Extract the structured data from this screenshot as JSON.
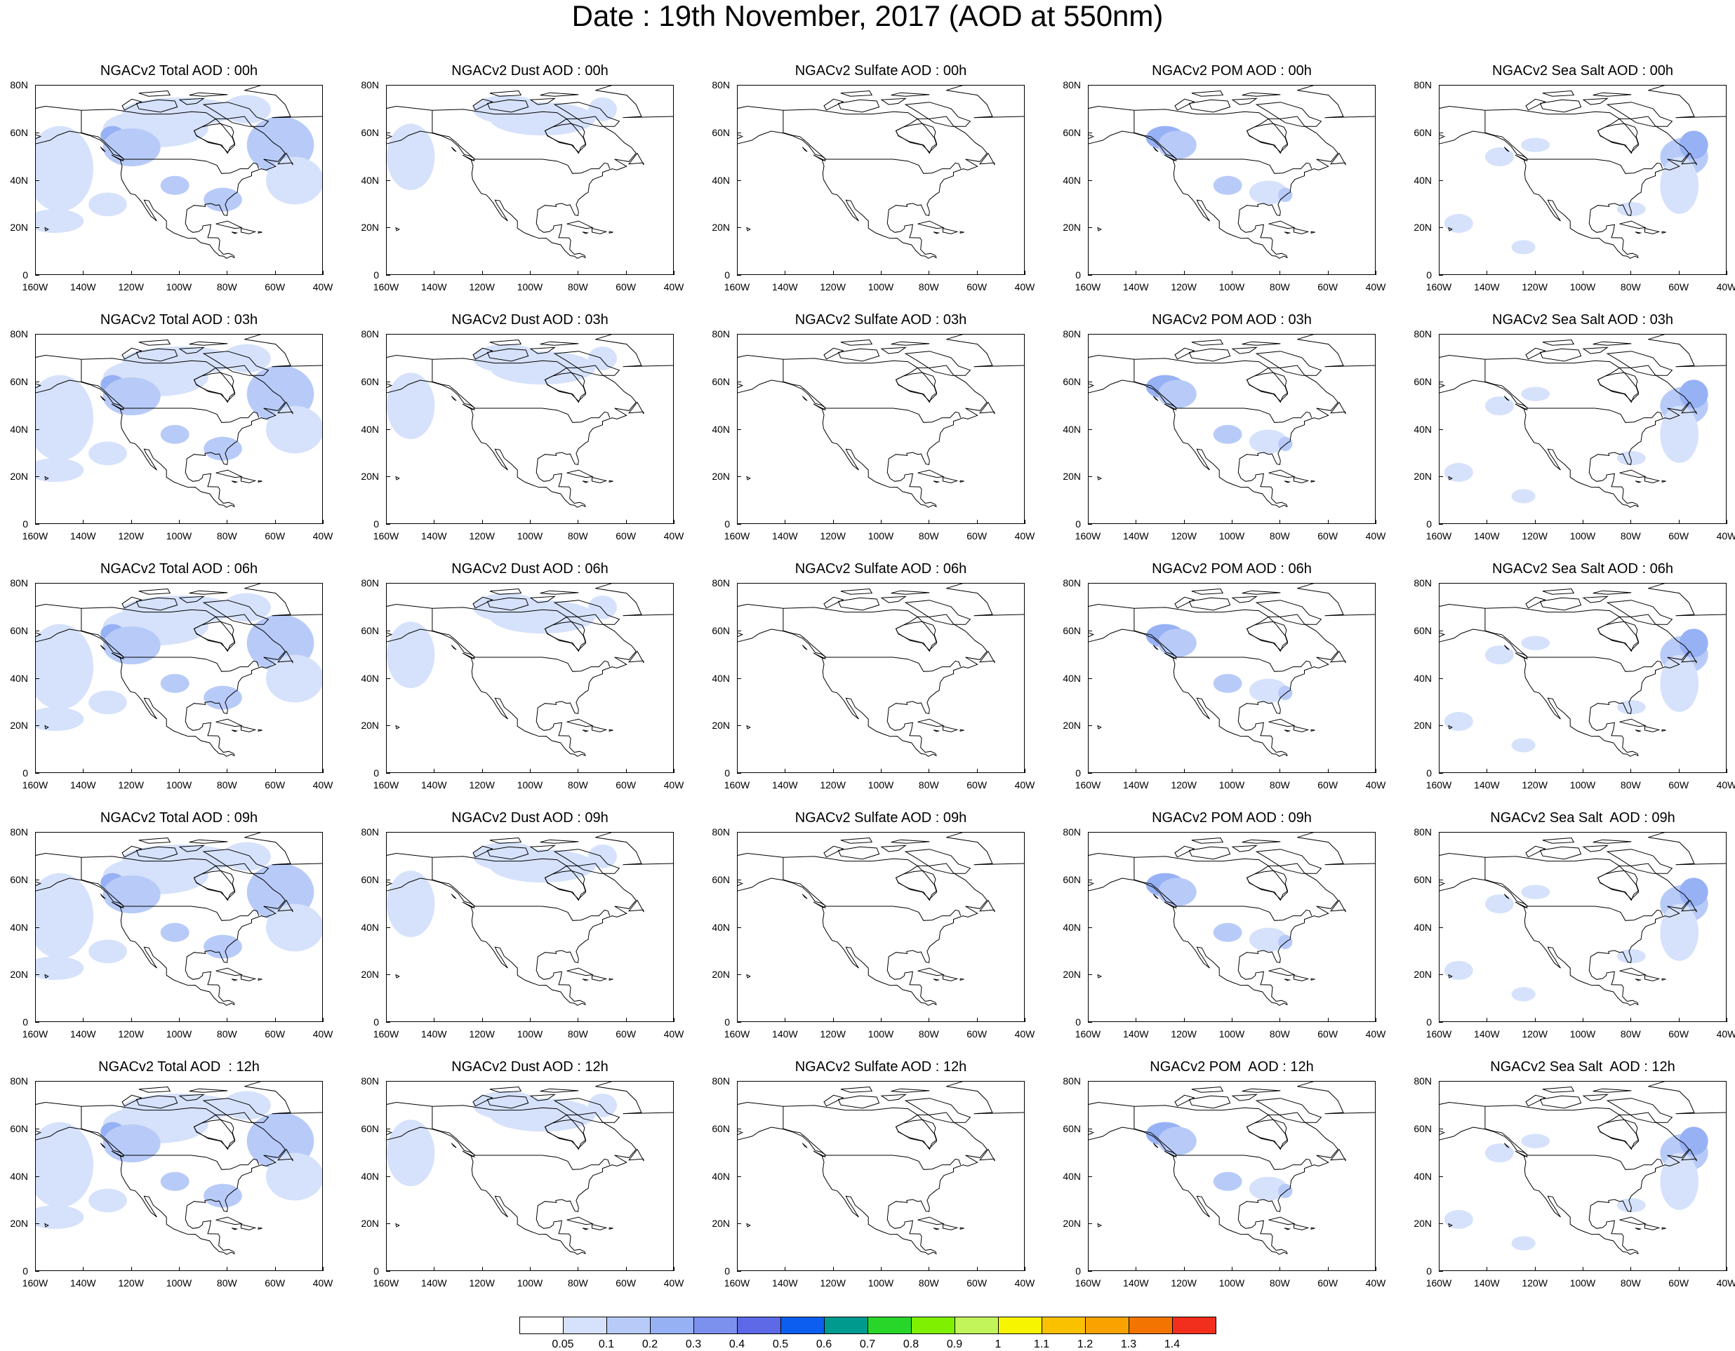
{
  "title": "Date : 19th November, 2017 (AOD at 550nm)",
  "panels": [
    [
      "NGACv2 Total AOD : 00h",
      "NGACv2 Dust AOD : 00h",
      "NGACv2 Sulfate AOD : 00h",
      "NGACv2 POM AOD : 00h",
      "NGACv2 Sea Salt AOD : 00h"
    ],
    [
      "NGACv2 Total AOD : 03h",
      "NGACv2 Dust AOD : 03h",
      "NGACv2 Sulfate AOD : 03h",
      "NGACv2 POM AOD : 03h",
      "NGACv2 Sea Salt AOD : 03h"
    ],
    [
      "NGACv2 Total AOD : 06h",
      "NGACv2 Dust AOD : 06h",
      "NGACv2 Sulfate AOD : 06h",
      "NGACv2 POM AOD : 06h",
      "NGACv2 Sea Salt AOD : 06h"
    ],
    [
      "NGACv2 Total AOD : 09h",
      "NGACv2 Dust AOD : 09h",
      "NGACv2 Sulfate AOD : 09h",
      "NGACv2 POM AOD : 09h",
      "NGACv2 Sea Salt  AOD : 09h"
    ],
    [
      "NGACv2 Total AOD  : 12h",
      "NGACv2 Dust AOD : 12h",
      "NGACv2 Sulfate AOD : 12h",
      "NGACv2 POM  AOD : 12h",
      "NGACv2 Sea Salt  AOD : 12h"
    ]
  ],
  "lat_labels": [
    "80N",
    "60N",
    "40N",
    "20N",
    "0"
  ],
  "lon_labels": [
    "160W",
    "140W",
    "120W",
    "100W",
    "80W",
    "60W",
    "40W"
  ],
  "colorbar": {
    "labels": [
      "0.05",
      "0.1",
      "0.2",
      "0.3",
      "0.4",
      "0.5",
      "0.6",
      "0.7",
      "0.8",
      "0.9",
      "1",
      "1.1",
      "1.2",
      "1.3",
      "1.4"
    ],
    "colors": [
      "#ffffff",
      "#d6e2fb",
      "#b8cbf8",
      "#97b1f5",
      "#7c90ee",
      "#5d69e6",
      "#0c5ef0",
      "#009a8f",
      "#28d62a",
      "#7ff000",
      "#c2f55a",
      "#f7f500",
      "#f9c100",
      "#f9a200",
      "#f37500",
      "#f22e1c"
    ]
  },
  "map_data": {
    "type": "gridded-field",
    "variable": "AOD at 550nm",
    "extent": {
      "lon": [
        -160,
        -40
      ],
      "lat": [
        0,
        80
      ]
    },
    "species_cols": [
      "total",
      "dust",
      "sulfate",
      "pom",
      "seasalt"
    ],
    "forecast_hours": [
      "00h",
      "03h",
      "06h",
      "09h",
      "12h"
    ],
    "aod_level_by_species": {
      "total": 0.2,
      "dust": 0.1,
      "sulfate": 0.0,
      "pom": 0.2,
      "seasalt": 0.2
    }
  }
}
